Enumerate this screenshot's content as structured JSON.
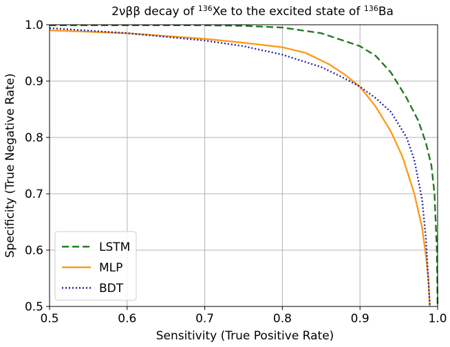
{
  "chart_data": {
    "type": "line",
    "title": {
      "prefix": "2νββ decay of ",
      "sup1": "136",
      "mid": "Xe to the excited state of ",
      "sup2": "136",
      "suffix": "Ba"
    },
    "xlabel": "Sensitivity (True Positive Rate)",
    "ylabel": "Specificity (True Negative Rate)",
    "xlim": [
      0.5,
      1.0
    ],
    "ylim": [
      0.5,
      1.0
    ],
    "xticks": [
      "0.5",
      "0.6",
      "0.7",
      "0.8",
      "0.9",
      "1.0"
    ],
    "yticks": [
      "0.5",
      "0.6",
      "0.7",
      "0.8",
      "0.9",
      "1.0"
    ],
    "grid": true,
    "legend_position": "lower-left",
    "series": [
      {
        "name": "LSTM",
        "color": "#1e7b1e",
        "style": "dashed",
        "points": [
          [
            0.5,
            0.999
          ],
          [
            0.6,
            0.999
          ],
          [
            0.7,
            0.999
          ],
          [
            0.75,
            0.998
          ],
          [
            0.8,
            0.995
          ],
          [
            0.85,
            0.985
          ],
          [
            0.9,
            0.962
          ],
          [
            0.92,
            0.945
          ],
          [
            0.94,
            0.915
          ],
          [
            0.96,
            0.87
          ],
          [
            0.975,
            0.83
          ],
          [
            0.985,
            0.79
          ],
          [
            0.992,
            0.75
          ],
          [
            0.996,
            0.7
          ],
          [
            0.999,
            0.6
          ],
          [
            1.0,
            0.5
          ]
        ]
      },
      {
        "name": "MLP",
        "color": "#ff9a1a",
        "style": "solid",
        "points": [
          [
            0.5,
            0.99
          ],
          [
            0.6,
            0.985
          ],
          [
            0.7,
            0.975
          ],
          [
            0.75,
            0.968
          ],
          [
            0.8,
            0.96
          ],
          [
            0.83,
            0.95
          ],
          [
            0.86,
            0.93
          ],
          [
            0.88,
            0.912
          ],
          [
            0.9,
            0.89
          ],
          [
            0.92,
            0.855
          ],
          [
            0.94,
            0.81
          ],
          [
            0.955,
            0.765
          ],
          [
            0.97,
            0.7
          ],
          [
            0.98,
            0.64
          ],
          [
            0.985,
            0.59
          ],
          [
            0.988,
            0.55
          ],
          [
            0.99,
            0.5
          ]
        ]
      },
      {
        "name": "BDT",
        "color": "#1f1fa8",
        "style": "dotted",
        "points": [
          [
            0.5,
            0.994
          ],
          [
            0.6,
            0.985
          ],
          [
            0.7,
            0.972
          ],
          [
            0.75,
            0.962
          ],
          [
            0.8,
            0.947
          ],
          [
            0.85,
            0.925
          ],
          [
            0.88,
            0.905
          ],
          [
            0.9,
            0.89
          ],
          [
            0.92,
            0.87
          ],
          [
            0.94,
            0.845
          ],
          [
            0.96,
            0.8
          ],
          [
            0.97,
            0.76
          ],
          [
            0.98,
            0.69
          ],
          [
            0.985,
            0.62
          ],
          [
            0.99,
            0.5
          ]
        ]
      }
    ]
  }
}
